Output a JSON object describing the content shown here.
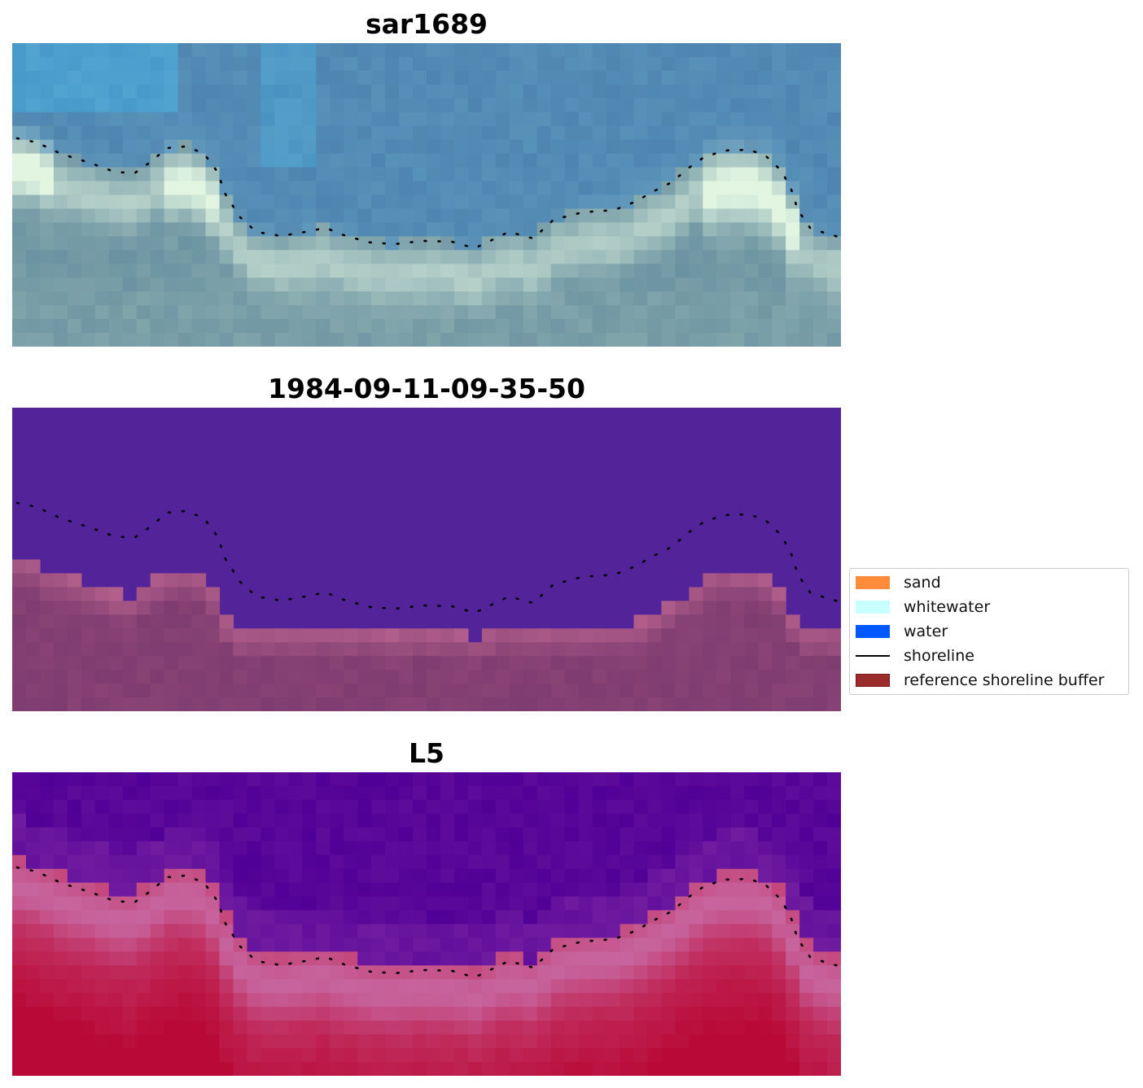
{
  "panels": [
    {
      "title": "sar1689",
      "kind": "rgb"
    },
    {
      "title": "1984-09-11-09-35-50",
      "kind": "classified"
    },
    {
      "title": "L5",
      "kind": "index"
    }
  ],
  "legend": {
    "items": [
      {
        "label": "sand",
        "type": "patch",
        "color": "#ff8c3a"
      },
      {
        "label": "whitewater",
        "type": "patch",
        "color": "#c8ffff"
      },
      {
        "label": "water",
        "type": "patch",
        "color": "#0059ff"
      },
      {
        "label": "shoreline",
        "type": "line",
        "color": "#000000"
      },
      {
        "label": "reference shoreline buffer",
        "type": "patch",
        "color": "#9a2c2c",
        "edge": "#7a1a1a"
      }
    ]
  },
  "chart_data": {
    "type": "image_panels",
    "panels": [
      "sar1689",
      "1984-09-11-09-35-50",
      "L5"
    ],
    "legend_loc": "right",
    "axes": "off"
  }
}
